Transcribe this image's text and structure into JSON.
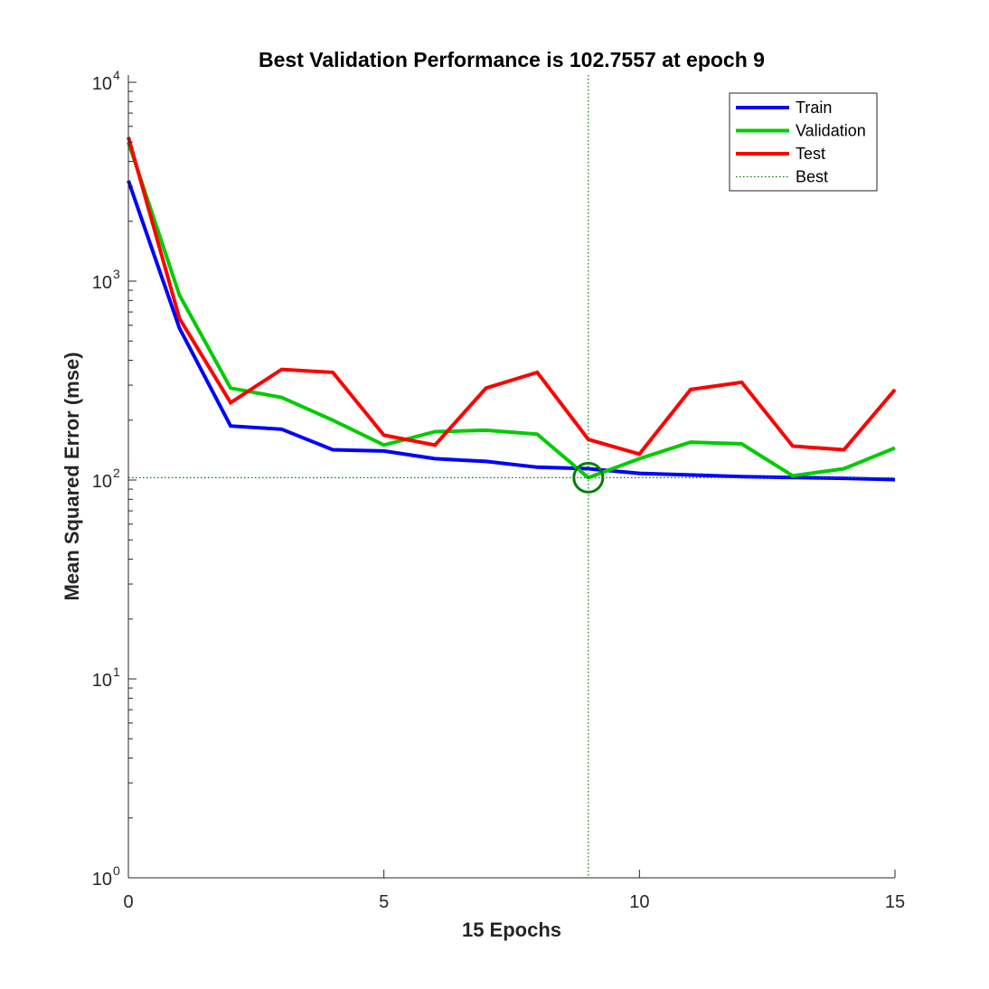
{
  "chart_data": {
    "type": "line",
    "title": "Best Validation Performance is 102.7557 at epoch 9",
    "xlabel": "15 Epochs",
    "ylabel": "Mean Squared Error  (mse)",
    "xlim": [
      0,
      15
    ],
    "ylim": [
      1,
      10000
    ],
    "yscale": "log",
    "xticks": [
      0,
      5,
      10,
      15
    ],
    "xtick_labels": [
      "0",
      "5",
      "10",
      "15"
    ],
    "yticks": [
      1,
      10,
      100,
      1000,
      10000
    ],
    "ytick_base": "10",
    "ytick_exponents": [
      "0",
      "1",
      "2",
      "3",
      "4"
    ],
    "grid": false,
    "legend_position": "top-right",
    "x": [
      0,
      1,
      2,
      3,
      4,
      5,
      6,
      7,
      8,
      9,
      10,
      11,
      12,
      13,
      14,
      15
    ],
    "series": [
      {
        "name": "Train",
        "color": "#0000ff",
        "values": [
          3200,
          580,
          187,
          180,
          142,
          140,
          128,
          124,
          116,
          114,
          108,
          106,
          104,
          103,
          102,
          100.5
        ]
      },
      {
        "name": "Validation",
        "color": "#00cc00",
        "values": [
          5000,
          850,
          290,
          260,
          200,
          150,
          175,
          178,
          170,
          102.7557,
          128,
          155,
          152,
          105,
          114,
          145
        ]
      },
      {
        "name": "Test",
        "color": "#ff0000",
        "values": [
          5300,
          650,
          245,
          360,
          348,
          168,
          150,
          290,
          348,
          160,
          135,
          285,
          310,
          148,
          142,
          285
        ]
      }
    ],
    "best": {
      "name": "Best",
      "epoch": 9,
      "value": 102.7557,
      "color": "#008000"
    }
  }
}
